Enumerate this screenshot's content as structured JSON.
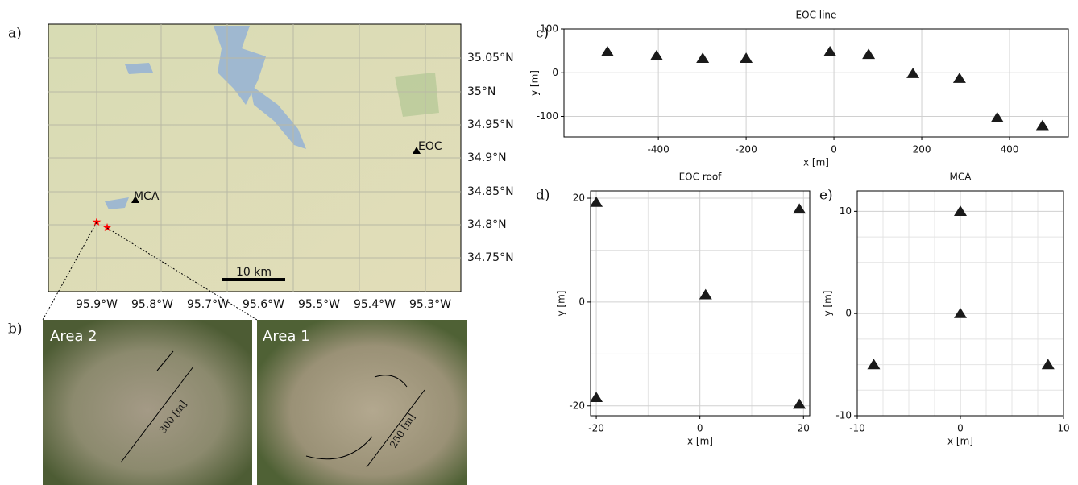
{
  "panels": {
    "a": "a)",
    "b": "b)",
    "c": "c)",
    "d": "d)",
    "e": "e)"
  },
  "map": {
    "lat_labels": [
      "35.05°N",
      "35°N",
      "34.95°N",
      "34.9°N",
      "34.85°N",
      "34.8°N",
      "34.75°N"
    ],
    "lon_labels": [
      "95.9°W",
      "95.8°W",
      "95.7°W",
      "95.6°W",
      "95.5°W",
      "95.4°W",
      "95.3°W"
    ],
    "stations": [
      "MCA",
      "EOC"
    ],
    "scale_label": "10 km"
  },
  "photos": [
    {
      "title": "Area 2",
      "length": "300 [m]"
    },
    {
      "title": "Area 1",
      "length": "250 [m]"
    }
  ],
  "chart_data": [
    {
      "type": "scatter",
      "title": "EOC line",
      "x_label": "x [m]",
      "y_label": "y [m]",
      "color": "#1a1a1a",
      "grid": true,
      "x": [
        -516,
        -404,
        -299,
        -200,
        -9,
        79,
        180,
        286,
        372,
        475
      ],
      "values": [
        48,
        39,
        33,
        33,
        48,
        42,
        -2,
        -13,
        -103,
        -121
      ],
      "xlim": [
        -615,
        534
      ],
      "ylim": [
        -147,
        100
      ],
      "xticks": [
        -400,
        -200,
        0,
        200,
        400
      ],
      "yticks": [
        -100,
        0,
        100
      ]
    },
    {
      "type": "scatter",
      "title": "EOC roof",
      "x_label": "x [m]",
      "y_label": "y [m]",
      "color": "#1a1a1a",
      "grid": true,
      "x": [
        -20,
        19.2,
        1.1,
        -20,
        19.2
      ],
      "values": [
        19.2,
        17.9,
        1.4,
        -18.4,
        -19.7
      ],
      "xlim": [
        -21.1,
        21.2
      ],
      "ylim": [
        -21.9,
        21.4
      ],
      "xticks": [
        -20,
        0,
        20
      ],
      "yticks": [
        -20,
        0,
        20
      ],
      "xminor": [
        -10,
        10
      ],
      "yminor": [
        -10,
        10
      ]
    },
    {
      "type": "scatter",
      "title": "MCA",
      "x_label": "x [m]",
      "y_label": "y [m]",
      "color": "#1a1a1a",
      "grid": true,
      "x": [
        0,
        0,
        -8.4,
        8.5
      ],
      "values": [
        10,
        0,
        -5,
        -5
      ],
      "xlim": [
        -10,
        10
      ],
      "ylim": [
        -10,
        12
      ],
      "xticks": [
        -10,
        0,
        10
      ],
      "yticks": [
        -10,
        0,
        10
      ],
      "xminor": [
        -7.5,
        -5,
        -2.5,
        2.5,
        5,
        7.5
      ],
      "yminor": [
        -7.5,
        -5,
        -2.5,
        2.5,
        5,
        7.5
      ]
    }
  ]
}
